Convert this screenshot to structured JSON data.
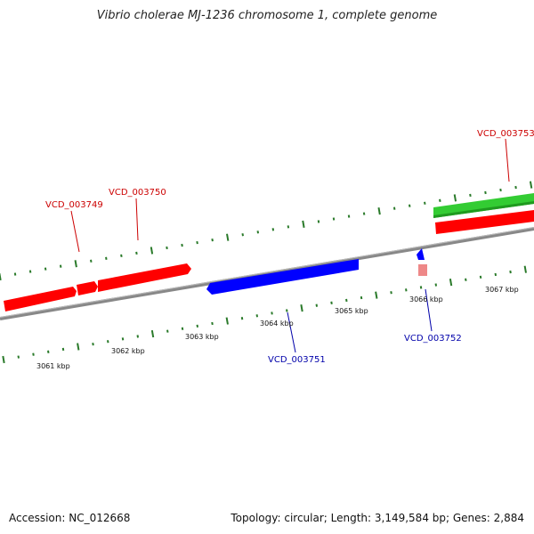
{
  "title": "Vibrio cholerae MJ-1236 chromosome 1, complete genome",
  "footer": {
    "accession": "Accession: NC_012668",
    "summary": "Topology: circular; Length: 3,149,584 bp; Genes: 2,884"
  },
  "colors": {
    "forward": "#ff0000",
    "reverse": "#0000ff",
    "rna": "#33cc33",
    "pseudo": "#ee8888",
    "backbone": "#888888",
    "ticks": "#2a7a2a",
    "label_forward": "#cc0000",
    "label_reverse": "#0000aa"
  },
  "ticks": [
    {
      "label": "3061 kbp"
    },
    {
      "label": "3062 kbp"
    },
    {
      "label": "3063 kbp"
    },
    {
      "label": "3064 kbp"
    },
    {
      "label": "3065 kbp"
    },
    {
      "label": "3066 kbp"
    },
    {
      "label": "3067 kbp"
    }
  ],
  "genes": [
    {
      "label": "VCD_003749",
      "strand": "forward"
    },
    {
      "label": "VCD_003750",
      "strand": "forward"
    },
    {
      "label": "VCD_003751",
      "strand": "reverse"
    },
    {
      "label": "VCD_003752",
      "strand": "reverse"
    },
    {
      "label": "VCD_003753",
      "strand": "forward"
    }
  ]
}
